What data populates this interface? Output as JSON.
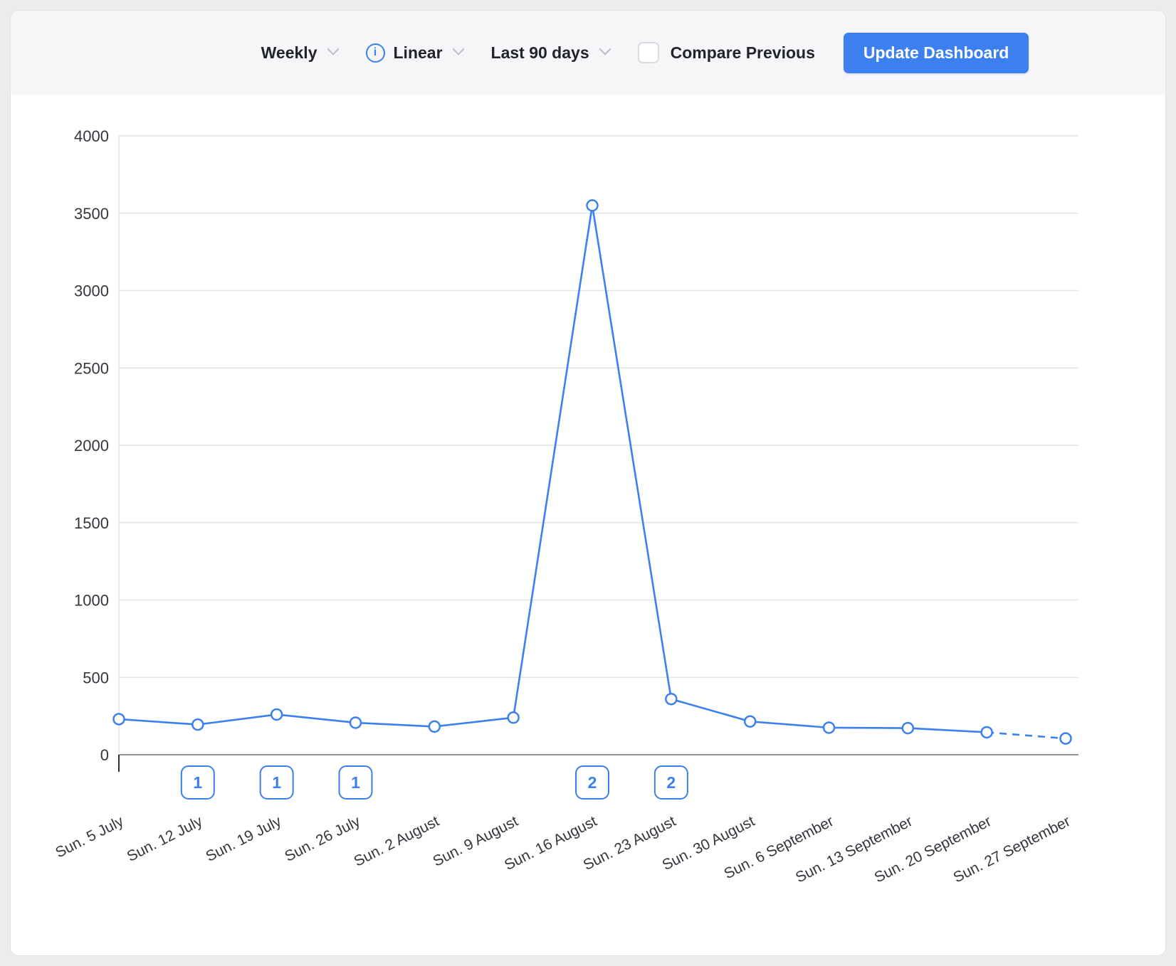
{
  "colors": {
    "accent": "#3c80f0",
    "line": "#3c80f0",
    "grid": "#e4e4e7",
    "axis_zero": "#8e9196",
    "axis_tick": "#2b2e33",
    "text": "#33373d"
  },
  "toolbar": {
    "period": {
      "label": "Weekly"
    },
    "scale": {
      "label": "Linear",
      "info_icon_glyph": "i"
    },
    "range": {
      "label": "Last 90 days"
    },
    "compare": {
      "label": "Compare Previous",
      "checked": false
    },
    "update_button_label": "Update Dashboard"
  },
  "chart_data": {
    "type": "line",
    "title": "",
    "xlabel": "",
    "ylabel": "",
    "categories": [
      "Sun. 5 July",
      "Sun. 12 July",
      "Sun. 19 July",
      "Sun. 26 July",
      "Sun. 2 August",
      "Sun. 9 August",
      "Sun. 16 August",
      "Sun. 23 August",
      "Sun. 30 August",
      "Sun. 6 September",
      "Sun. 13 September",
      "Sun. 20 September",
      "Sun. 27 September"
    ],
    "values": [
      230,
      195,
      260,
      207,
      182,
      240,
      3550,
      360,
      215,
      175,
      172,
      145,
      105
    ],
    "ylim": [
      0,
      4000
    ],
    "yticks": [
      0,
      500,
      1000,
      1500,
      2000,
      2500,
      3000,
      3500,
      4000
    ],
    "grid": true,
    "legend": "none",
    "dashed_last_segment": true,
    "annotations": [
      {
        "index": 1,
        "label": "1"
      },
      {
        "index": 2,
        "label": "1"
      },
      {
        "index": 3,
        "label": "1"
      },
      {
        "index": 6,
        "label": "2"
      },
      {
        "index": 7,
        "label": "2"
      }
    ]
  }
}
